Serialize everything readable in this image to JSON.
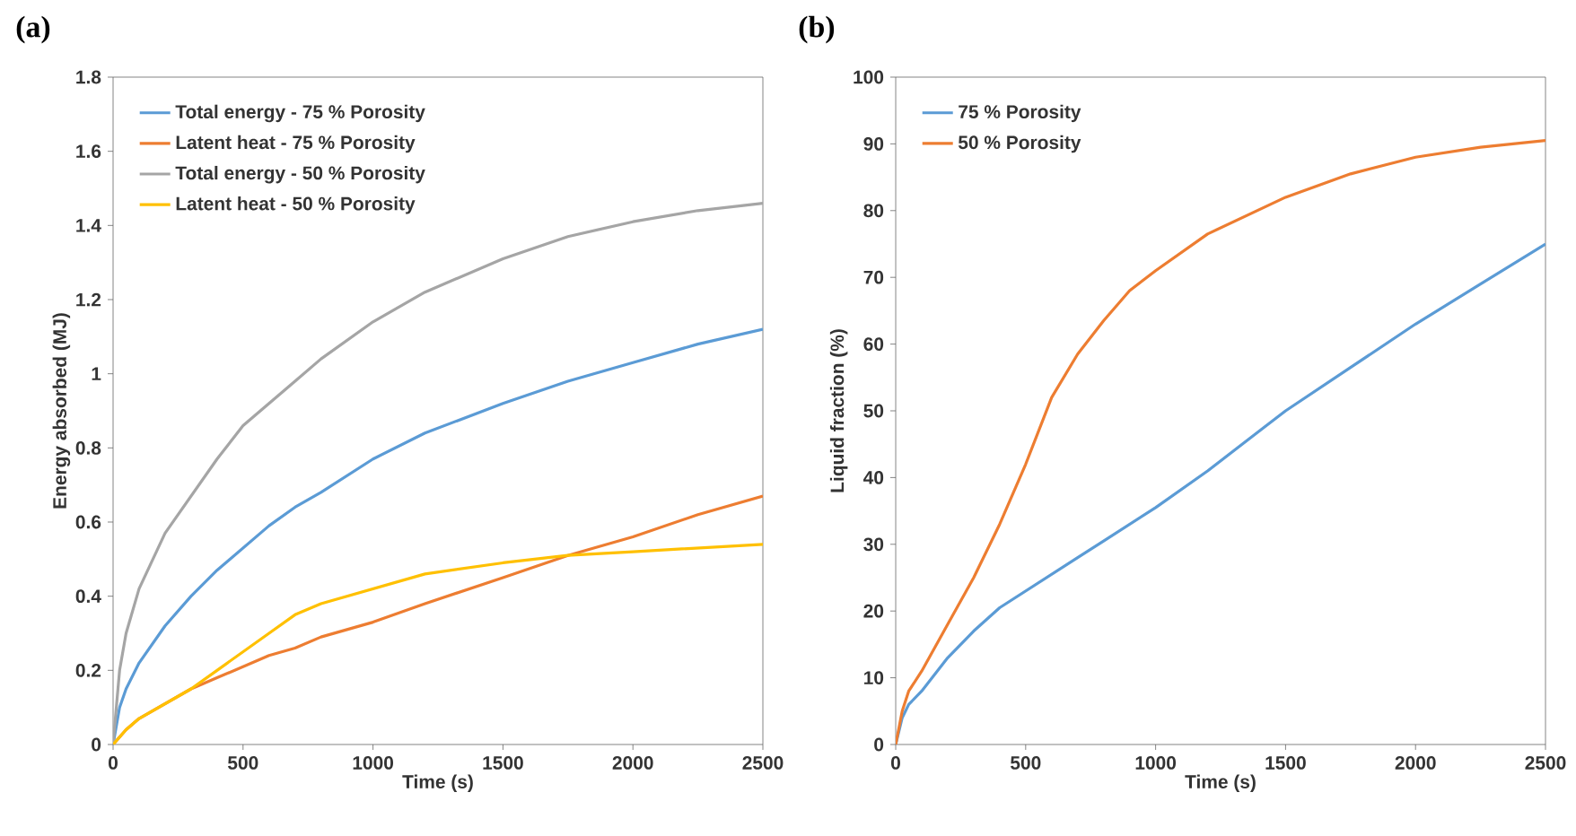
{
  "chart_data": [
    {
      "type": "line",
      "title": "(a)",
      "xlabel": "Time (s)",
      "ylabel": "Energy absorbed (MJ)",
      "xlim": [
        0,
        2500
      ],
      "ylim": [
        0,
        1.8
      ],
      "xticks": [
        0,
        500,
        1000,
        1500,
        2000,
        2500
      ],
      "yticks": [
        0,
        0.2,
        0.4,
        0.6,
        0.8,
        1,
        1.2,
        1.4,
        1.6,
        1.8
      ],
      "legend": "top left",
      "series": [
        {
          "name": "Total energy - 75 % Porosity",
          "color": "#5b9bd5",
          "x": [
            0,
            25,
            50,
            100,
            200,
            300,
            400,
            500,
            600,
            700,
            800,
            1000,
            1200,
            1500,
            1750,
            2000,
            2250,
            2500
          ],
          "values": [
            0,
            0.1,
            0.15,
            0.22,
            0.32,
            0.4,
            0.47,
            0.53,
            0.59,
            0.64,
            0.68,
            0.77,
            0.84,
            0.92,
            0.98,
            1.03,
            1.08,
            1.12
          ]
        },
        {
          "name": "Latent heat - 75 % Porosity",
          "color": "#ed7d31",
          "x": [
            0,
            50,
            100,
            200,
            300,
            400,
            500,
            600,
            700,
            800,
            1000,
            1200,
            1500,
            1750,
            2000,
            2250,
            2500
          ],
          "values": [
            0,
            0.04,
            0.07,
            0.11,
            0.15,
            0.18,
            0.21,
            0.24,
            0.26,
            0.29,
            0.33,
            0.38,
            0.45,
            0.51,
            0.56,
            0.62,
            0.67
          ]
        },
        {
          "name": "Total energy - 50 % Porosity",
          "color": "#a5a5a5",
          "x": [
            0,
            25,
            50,
            100,
            200,
            300,
            400,
            500,
            600,
            700,
            800,
            1000,
            1200,
            1500,
            1750,
            2000,
            2250,
            2500
          ],
          "values": [
            0,
            0.2,
            0.3,
            0.42,
            0.57,
            0.67,
            0.77,
            0.86,
            0.92,
            0.98,
            1.04,
            1.14,
            1.22,
            1.31,
            1.37,
            1.41,
            1.44,
            1.46
          ]
        },
        {
          "name": "Latent heat - 50 % Porosity",
          "color": "#ffc000",
          "x": [
            0,
            50,
            100,
            200,
            300,
            400,
            500,
            600,
            700,
            800,
            1000,
            1200,
            1500,
            1750,
            2000,
            2250,
            2500
          ],
          "values": [
            0,
            0.04,
            0.07,
            0.11,
            0.15,
            0.2,
            0.25,
            0.3,
            0.35,
            0.38,
            0.42,
            0.46,
            0.49,
            0.51,
            0.52,
            0.53,
            0.54
          ]
        }
      ]
    },
    {
      "type": "line",
      "title": "(b)",
      "xlabel": "Time (s)",
      "ylabel": "Liquid fraction (%)",
      "xlim": [
        0,
        2500
      ],
      "ylim": [
        0,
        100
      ],
      "xticks": [
        0,
        500,
        1000,
        1500,
        2000,
        2500
      ],
      "yticks": [
        0,
        10,
        20,
        30,
        40,
        50,
        60,
        70,
        80,
        90,
        100
      ],
      "legend": "top left",
      "series": [
        {
          "name": "75 % Porosity",
          "color": "#5b9bd5",
          "x": [
            0,
            25,
            50,
            100,
            200,
            300,
            400,
            500,
            600,
            700,
            800,
            1000,
            1200,
            1400,
            1500,
            1750,
            2000,
            2250,
            2500
          ],
          "values": [
            0,
            4,
            6,
            8,
            13,
            17,
            20.5,
            23,
            25.5,
            28,
            30.5,
            35.5,
            41,
            47,
            50,
            56.5,
            63,
            69,
            75
          ]
        },
        {
          "name": "50 % Porosity",
          "color": "#ed7d31",
          "x": [
            0,
            25,
            50,
            100,
            200,
            300,
            400,
            500,
            600,
            700,
            800,
            900,
            1000,
            1200,
            1500,
            1750,
            2000,
            2250,
            2500
          ],
          "values": [
            0,
            5,
            8,
            11,
            18,
            25,
            33,
            42,
            52,
            58.5,
            63.5,
            68,
            71,
            76.5,
            82,
            85.5,
            88,
            89.5,
            90.5
          ]
        }
      ]
    }
  ]
}
